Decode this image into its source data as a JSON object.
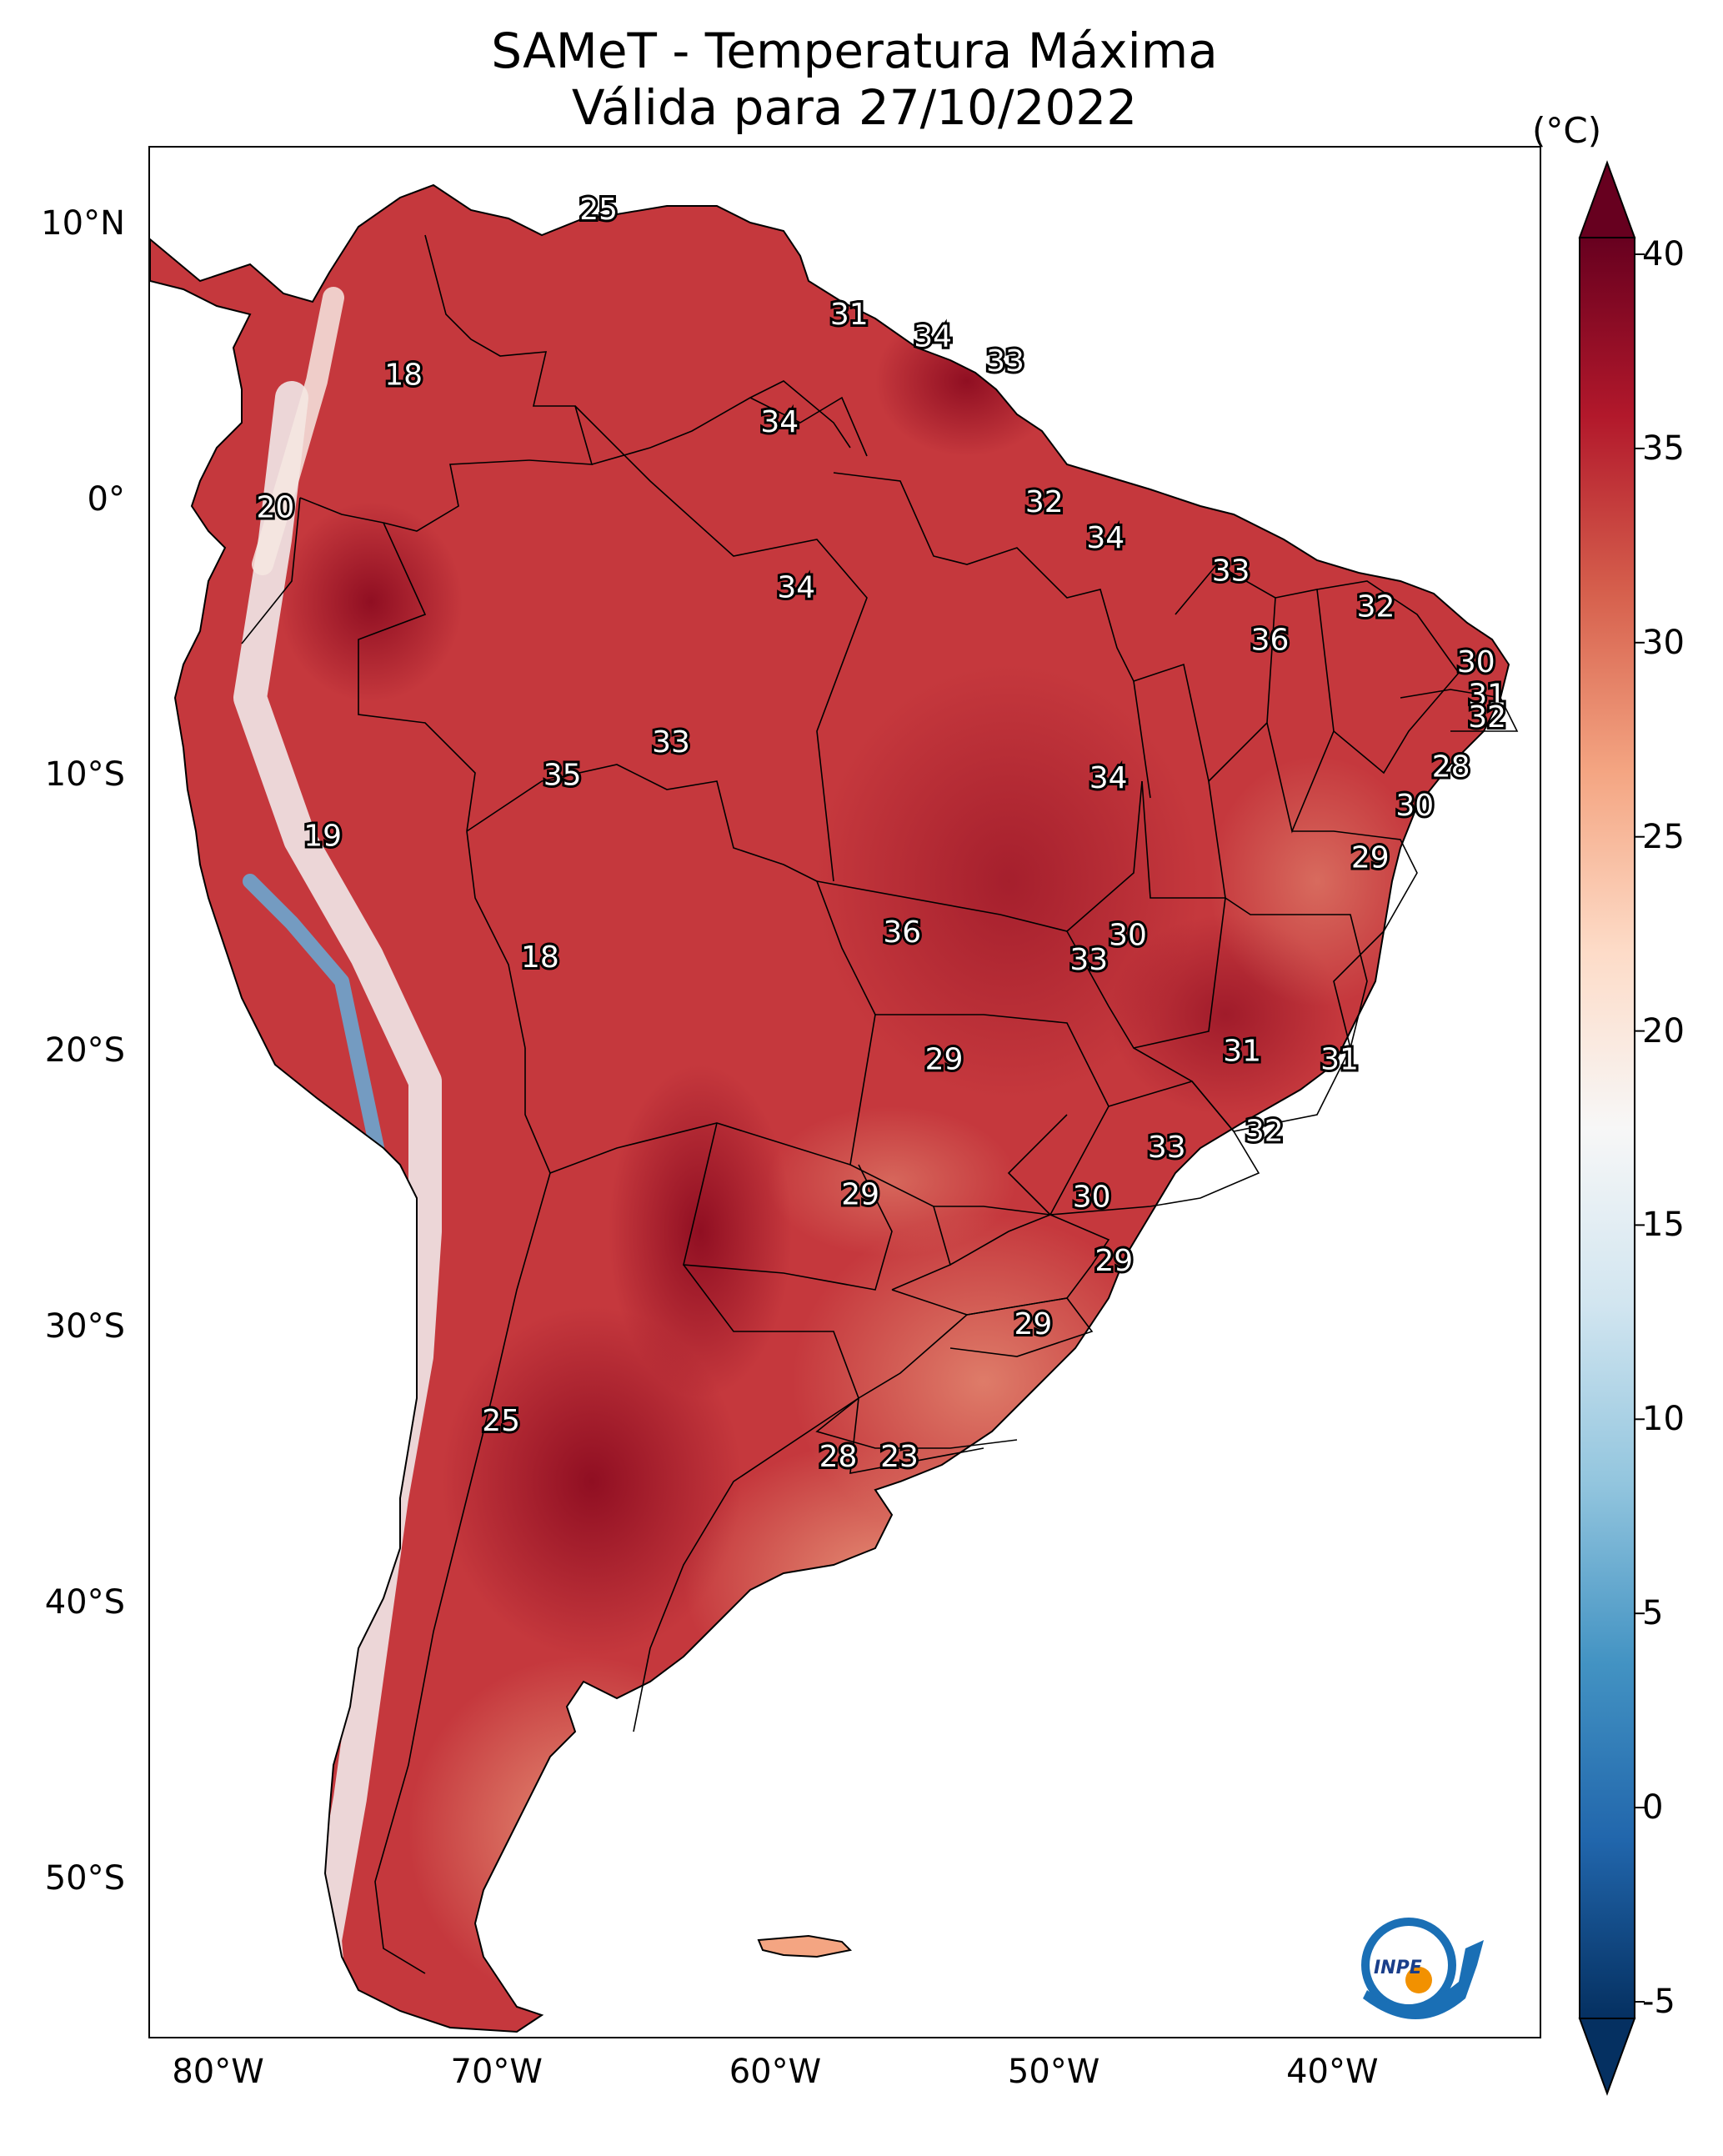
{
  "title": {
    "line1": "SAMeT - Temperatura Máxima",
    "line2": "Válida para 27/10/2022"
  },
  "axes": {
    "lon_labels": [
      "80°W",
      "70°W",
      "60°W",
      "50°W",
      "40°W"
    ],
    "lat_labels": [
      "10°N",
      "0°",
      "10°S",
      "20°S",
      "30°S",
      "40°S",
      "50°S"
    ],
    "lon_values": [
      -80,
      -70,
      -60,
      -50,
      -40
    ],
    "lat_values": [
      10,
      0,
      -10,
      -20,
      -30,
      -40,
      -50
    ],
    "lon_range": [
      -82.5,
      -32.5
    ],
    "lat_range": [
      12.8,
      -55.8
    ]
  },
  "colorbar": {
    "unit": "(°C)",
    "ticks": [
      "40",
      "35",
      "30",
      "25",
      "20",
      "15",
      "10",
      "5",
      "0",
      "-5"
    ],
    "tick_values": [
      40,
      35,
      30,
      25,
      20,
      15,
      10,
      5,
      0,
      -5
    ],
    "range": [
      -5,
      40
    ],
    "colors": [
      "#053061",
      "#2166ac",
      "#4393c3",
      "#92c5de",
      "#d1e5f0",
      "#f7f7f7",
      "#fddbc7",
      "#f4a582",
      "#d6604d",
      "#b2182b",
      "#67001f"
    ]
  },
  "map_labels": [
    {
      "text": "25",
      "lon": -66.4,
      "lat": 10.5
    },
    {
      "text": "18",
      "lon": -73.4,
      "lat": 4.5
    },
    {
      "text": "31",
      "lon": -57.4,
      "lat": 6.7
    },
    {
      "text": "34",
      "lon": -54.4,
      "lat": 5.9
    },
    {
      "text": "33",
      "lon": -51.8,
      "lat": 5.0
    },
    {
      "text": "34",
      "lon": -59.9,
      "lat": 2.8
    },
    {
      "text": "20",
      "lon": -78.0,
      "lat": -0.3
    },
    {
      "text": "32",
      "lon": -50.4,
      "lat": -0.1
    },
    {
      "text": "34",
      "lon": -48.2,
      "lat": -1.4
    },
    {
      "text": "33",
      "lon": -43.7,
      "lat": -2.6
    },
    {
      "text": "34",
      "lon": -59.3,
      "lat": -3.2
    },
    {
      "text": "32",
      "lon": -38.5,
      "lat": -3.9
    },
    {
      "text": "36",
      "lon": -42.3,
      "lat": -5.1
    },
    {
      "text": "30",
      "lon": -34.9,
      "lat": -5.9
    },
    {
      "text": "31",
      "lon": -34.5,
      "lat": -7.1
    },
    {
      "text": "32",
      "lon": -34.5,
      "lat": -7.9
    },
    {
      "text": "33",
      "lon": -63.8,
      "lat": -8.8
    },
    {
      "text": "28",
      "lon": -35.8,
      "lat": -9.7
    },
    {
      "text": "35",
      "lon": -67.7,
      "lat": -10.0
    },
    {
      "text": "34",
      "lon": -48.1,
      "lat": -10.1
    },
    {
      "text": "30",
      "lon": -37.1,
      "lat": -11.1
    },
    {
      "text": "19",
      "lon": -76.3,
      "lat": -12.2
    },
    {
      "text": "29",
      "lon": -38.7,
      "lat": -13.0
    },
    {
      "text": "36",
      "lon": -55.5,
      "lat": -15.7
    },
    {
      "text": "30",
      "lon": -47.4,
      "lat": -15.8
    },
    {
      "text": "33",
      "lon": -48.8,
      "lat": -16.7
    },
    {
      "text": "18",
      "lon": -68.5,
      "lat": -16.6
    },
    {
      "text": "29",
      "lon": -54.0,
      "lat": -20.3
    },
    {
      "text": "31",
      "lon": -43.3,
      "lat": -20.0
    },
    {
      "text": "31",
      "lon": -39.8,
      "lat": -20.3
    },
    {
      "text": "32",
      "lon": -42.5,
      "lat": -22.9
    },
    {
      "text": "33",
      "lon": -46.0,
      "lat": -23.5
    },
    {
      "text": "29",
      "lon": -57.0,
      "lat": -25.2
    },
    {
      "text": "30",
      "lon": -48.7,
      "lat": -25.3
    },
    {
      "text": "29",
      "lon": -47.9,
      "lat": -27.6
    },
    {
      "text": "29",
      "lon": -50.8,
      "lat": -29.9
    },
    {
      "text": "25",
      "lon": -69.9,
      "lat": -33.4
    },
    {
      "text": "28",
      "lon": -57.8,
      "lat": -34.7
    },
    {
      "text": "23",
      "lon": -55.6,
      "lat": -34.7
    }
  ],
  "logo": {
    "text": "INPE"
  }
}
